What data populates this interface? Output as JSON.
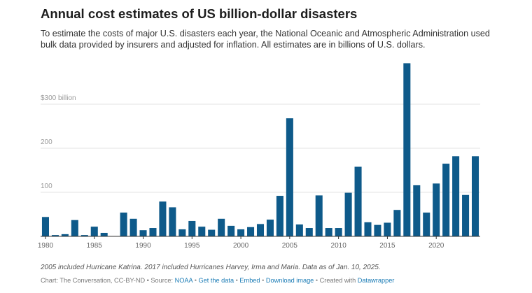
{
  "header": {
    "title": "Annual cost estimates of US billion-dollar disasters",
    "subtitle": "To estimate the costs of major U.S. disasters each year, the National Oceanic and Atmospheric Administration used bulk data provided by insurers and adjusted for inflation. All estimates are in billions of U.S. dollars."
  },
  "colors": {
    "bar": "#0e5a8a",
    "grid": "#e3e3e3",
    "axis": "#333333",
    "tick_text": "#9a9a9a",
    "link": "#1a7bb5"
  },
  "chart_data": {
    "type": "bar",
    "title": "Annual cost estimates of US billion-dollar disasters",
    "xlabel": "",
    "ylabel": "",
    "x": [
      1980,
      1981,
      1982,
      1983,
      1984,
      1985,
      1986,
      1987,
      1988,
      1989,
      1990,
      1991,
      1992,
      1993,
      1994,
      1995,
      1996,
      1997,
      1998,
      1999,
      2000,
      2001,
      2002,
      2003,
      2004,
      2005,
      2006,
      2007,
      2008,
      2009,
      2010,
      2011,
      2012,
      2013,
      2014,
      2015,
      2016,
      2017,
      2018,
      2019,
      2020,
      2021,
      2022,
      2023,
      2024
    ],
    "values": [
      44,
      3,
      5,
      37,
      3,
      22,
      8,
      0,
      54,
      40,
      14,
      19,
      79,
      66,
      16,
      35,
      22,
      15,
      40,
      24,
      16,
      21,
      28,
      38,
      92,
      268,
      27,
      19,
      93,
      19,
      19,
      99,
      158,
      32,
      26,
      31,
      60,
      393,
      116,
      54,
      120,
      165,
      182,
      94,
      182
    ],
    "x_ticks": [
      "1980",
      "1985",
      "1990",
      "1995",
      "2000",
      "2005",
      "2010",
      "2015",
      "2020"
    ],
    "y_ticks": [
      {
        "value": 100,
        "label": "100"
      },
      {
        "value": 200,
        "label": "200"
      },
      {
        "value": 300,
        "label": "$300 billion"
      }
    ],
    "ylim": [
      0,
      400
    ],
    "grid": true,
    "legend": "none"
  },
  "notes": "2005 included Hurricane Katrina. 2017 included Hurricanes Harvey, Irma and Maria. Data as of Jan. 10, 2025.",
  "footer": {
    "source_prefix": "Chart: The Conversation, CC-BY-ND • Source: ",
    "source_link": "NOAA",
    "sep": " • ",
    "get_data": "Get the data",
    "embed": "Embed",
    "download": "Download image",
    "created_prefix": "Created with ",
    "created_link": "Datawrapper"
  }
}
